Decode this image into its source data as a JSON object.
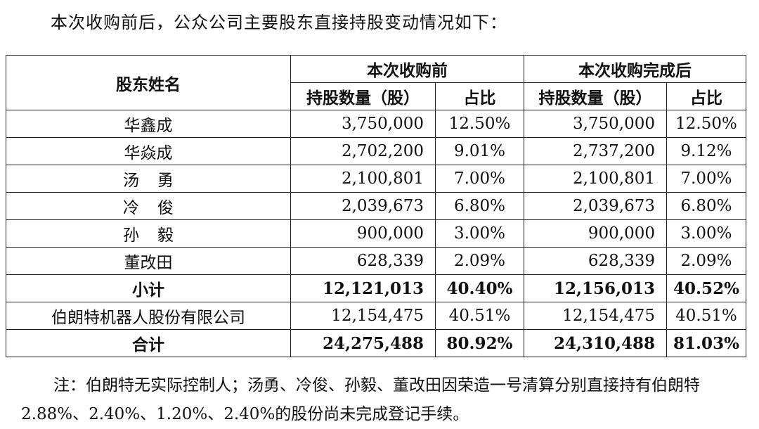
{
  "intro": "本次收购前后，公众公司主要股东直接持股变动情况如下：",
  "table": {
    "header": {
      "name": "股东姓名",
      "before": "本次收购前",
      "after": "本次收购完成后",
      "qty": "持股数量（股）",
      "pct": "占比"
    },
    "rows": [
      {
        "name": "华鑫成",
        "before_qty": "3,750,000",
        "before_pct": "12.50%",
        "after_qty": "3,750,000",
        "after_pct": "12.50%"
      },
      {
        "name": "华焱成",
        "before_qty": "2,702,200",
        "before_pct": "9.01%",
        "after_qty": "2,737,200",
        "after_pct": "9.12%"
      },
      {
        "name": "汤勇",
        "before_qty": "2,100,801",
        "before_pct": "7.00%",
        "after_qty": "2,100,801",
        "after_pct": "7.00%"
      },
      {
        "name": "冷俊",
        "before_qty": "2,039,673",
        "before_pct": "6.80%",
        "after_qty": "2,039,673",
        "after_pct": "6.80%"
      },
      {
        "name": "孙毅",
        "before_qty": "900,000",
        "before_pct": "3.00%",
        "after_qty": "900,000",
        "after_pct": "3.00%"
      },
      {
        "name": "董改田",
        "before_qty": "628,339",
        "before_pct": "2.09%",
        "after_qty": "628,339",
        "after_pct": "2.09%"
      },
      {
        "name": "小计",
        "before_qty": "12,121,013",
        "before_pct": "40.40%",
        "after_qty": "12,156,013",
        "after_pct": "40.52%"
      },
      {
        "name": "伯朗特机器人股份有限公司",
        "before_qty": "12,154,475",
        "before_pct": "40.51%",
        "after_qty": "12,154,475",
        "after_pct": "40.51%"
      },
      {
        "name": "合计",
        "before_qty": "24,275,488",
        "before_pct": "80.92%",
        "after_qty": "24,310,488",
        "after_pct": "81.03%"
      }
    ]
  },
  "note": "注：伯朗特无实际控制人；汤勇、冷俊、孙毅、董改田因荣造一号清算分别直接持有伯朗特 2.88%、2.40%、1.20%、2.40%的股份尚未完成登记手续。"
}
